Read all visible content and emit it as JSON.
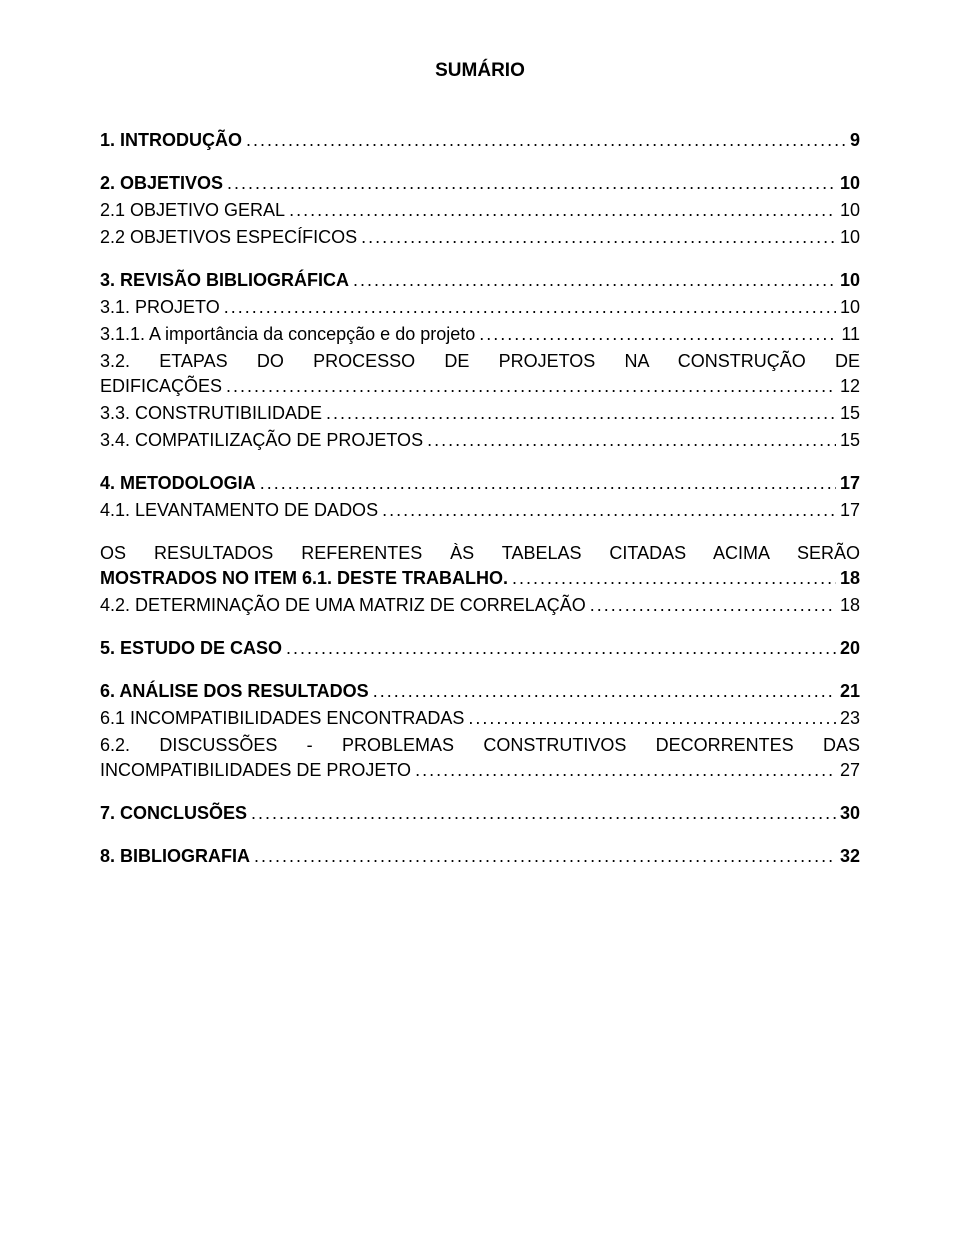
{
  "title": "SUMÁRIO",
  "entries": [
    {
      "label": "1. INTRODUÇÃO",
      "page": "9",
      "bold": true,
      "gap": false
    },
    {
      "label": "2. OBJETIVOS",
      "page": "10",
      "bold": true,
      "gap": true
    },
    {
      "label": "2.1 OBJETIVO GERAL",
      "page": "10",
      "bold": false,
      "gap": false
    },
    {
      "label": "2.2 OBJETIVOS ESPECÍFICOS",
      "page": "10",
      "bold": false,
      "gap": false
    },
    {
      "label": "3. REVISÃO BIBLIOGRÁFICA",
      "page": "10",
      "bold": true,
      "gap": true
    },
    {
      "label": "3.1. PROJETO",
      "page": "10",
      "bold": false,
      "gap": false
    },
    {
      "label": "3.1.1. A importância da concepção e do projeto",
      "page": "11",
      "bold": false,
      "gap": false
    },
    {
      "multiline_first": "3.2. ETAPAS DO PROCESSO DE PROJETOS NA CONSTRUÇÃO DE",
      "label": "EDIFICAÇÕES",
      "page": "12",
      "bold": false,
      "gap": false
    },
    {
      "label": "3.3. CONSTRUTIBILIDADE",
      "page": "15",
      "bold": false,
      "gap": false
    },
    {
      "label": "3.4. COMPATILIZAÇÃO DE PROJETOS",
      "page": "15",
      "bold": false,
      "gap": false
    },
    {
      "label": "4. METODOLOGIA",
      "page": "17",
      "bold": true,
      "gap": true
    },
    {
      "label": "4.1. LEVANTAMENTO DE DADOS",
      "page": "17",
      "bold": false,
      "gap": false
    },
    {
      "multiline_first": "OS RESULTADOS REFERENTES ÀS TABELAS CITADAS ACIMA SERÃO",
      "label": "MOSTRADOS NO ITEM 6.1. DESTE TRABALHO.",
      "page": "18",
      "bold": true,
      "gap": true
    },
    {
      "label": "4.2. DETERMINAÇÃO DE UMA MATRIZ DE CORRELAÇÃO",
      "page": "18",
      "bold": false,
      "gap": false
    },
    {
      "label": "5. ESTUDO DE CASO",
      "page": "20",
      "bold": true,
      "gap": true
    },
    {
      "label": "6. ANÁLISE DOS RESULTADOS",
      "page": "21",
      "bold": true,
      "gap": true
    },
    {
      "label": "6.1 INCOMPATIBILIDADES ENCONTRADAS",
      "page": "23",
      "bold": false,
      "gap": false
    },
    {
      "multiline_first": "6.2. DISCUSSÕES - PROBLEMAS CONSTRUTIVOS DECORRENTES DAS",
      "label": "INCOMPATIBILIDADES DE PROJETO",
      "page": "27",
      "bold": false,
      "gap": false
    },
    {
      "label": "7. CONCLUSÕES",
      "page": "30",
      "bold": true,
      "gap": true
    },
    {
      "label": "8. BIBLIOGRAFIA",
      "page": "32",
      "bold": true,
      "gap": true
    }
  ]
}
